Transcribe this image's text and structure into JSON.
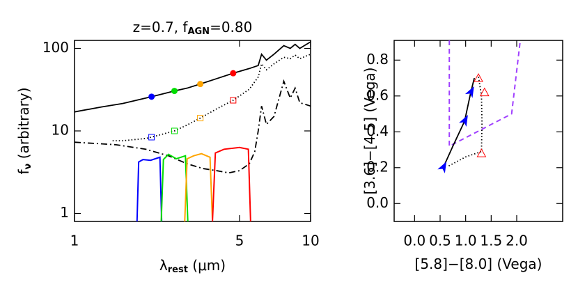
{
  "chart_data": [
    {
      "type": "line",
      "xlog": true,
      "ylog": true,
      "title": [
        "z=0.7,  f",
        "AGN",
        "=0.80"
      ],
      "xlabel": [
        "λ",
        "rest",
        " (μm)"
      ],
      "ylabel": [
        "f",
        "ν",
        " (arbitrary)"
      ],
      "xlim": [
        1,
        10
      ],
      "ylim": [
        0.8,
        125
      ],
      "xticks": [
        1,
        5,
        10
      ],
      "yticks": [
        1,
        10,
        100
      ],
      "series": [
        {
          "line": "solid",
          "color": "#000000",
          "x": [
            1,
            1.3,
            1.6,
            2,
            2.12,
            2.65,
            3,
            3.41,
            4,
            4.7,
            5.5,
            6,
            6.2,
            6.5,
            7,
            7.7,
            8.2,
            8.6,
            9,
            9.5,
            10
          ],
          "values": [
            17,
            19.5,
            21.5,
            25,
            26,
            30.5,
            33,
            37,
            43,
            50,
            57,
            62,
            85,
            72,
            85,
            108,
            100,
            112,
            100,
            110,
            120
          ]
        },
        {
          "line": "dotted",
          "color": "#000000",
          "x": [
            1.45,
            1.6,
            2,
            2.12,
            2.65,
            3,
            3.41,
            4,
            4.7,
            5.5,
            6,
            6.2,
            6.5,
            7,
            7.7,
            8.2,
            8.6,
            9,
            9.5,
            10
          ],
          "values": [
            7.6,
            7.6,
            8.1,
            8.4,
            10,
            11.8,
            14.3,
            18.5,
            23.5,
            32,
            45,
            65,
            55,
            65,
            78,
            75,
            83,
            75,
            80,
            85
          ]
        },
        {
          "line": "dashdot",
          "color": "#000000",
          "x": [
            1,
            1.5,
            2,
            2.5,
            3,
            3.5,
            4,
            4.5,
            5,
            5.5,
            5.8,
            6,
            6.2,
            6.5,
            7,
            7.7,
            8.2,
            8.6,
            9,
            10
          ],
          "values": [
            7.3,
            6.8,
            6,
            5,
            4,
            3.5,
            3.3,
            3.1,
            3.3,
            4,
            5.6,
            10,
            20,
            12,
            15,
            40,
            25,
            33,
            22,
            20
          ]
        },
        {
          "line": "solid",
          "color": "#0000ff",
          "x": [
            1.84,
            1.87,
            1.95,
            2.1,
            2.3,
            2.34
          ],
          "values": [
            0.8,
            4.2,
            4.5,
            4.4,
            4.8,
            0.8
          ]
        },
        {
          "line": "solid",
          "color": "#00dd00",
          "x": [
            2.33,
            2.38,
            2.5,
            2.7,
            2.95,
            3.02
          ],
          "values": [
            0.8,
            4.5,
            5.2,
            4.6,
            5.0,
            0.8
          ]
        },
        {
          "line": "solid",
          "color": "#ffa500",
          "x": [
            2.93,
            3.0,
            3.2,
            3.45,
            3.75,
            3.84
          ],
          "values": [
            0.8,
            4.6,
            5.0,
            5.3,
            4.8,
            0.8
          ]
        },
        {
          "line": "solid",
          "color": "#ff0000",
          "x": [
            3.84,
            3.95,
            4.3,
            5.0,
            5.45,
            5.57
          ],
          "values": [
            0.8,
            5.4,
            6.0,
            6.3,
            6.0,
            0.8
          ]
        },
        {
          "line": "none",
          "marker": "circle",
          "colors": [
            "#0000ff",
            "#00dd00",
            "#ffa500",
            "#ff0000"
          ],
          "x": [
            2.12,
            2.65,
            3.41,
            4.7
          ],
          "values": [
            26,
            30.5,
            37,
            50
          ]
        },
        {
          "line": "none",
          "marker": "square",
          "colors": [
            "#0000ff",
            "#00dd00",
            "#ffa500",
            "#ff0000"
          ],
          "x": [
            2.12,
            2.65,
            3.41,
            4.7
          ],
          "values": [
            8.4,
            10,
            14.3,
            23.5
          ]
        }
      ]
    },
    {
      "type": "line",
      "xlog": false,
      "ylog": false,
      "xlabel": [
        "[5.8]−[8.0] (Vega)"
      ],
      "ylabel": [
        "[3.6]−[4.5] (Vega)"
      ],
      "xlim": [
        -0.4,
        2.9
      ],
      "ylim": [
        -0.1,
        0.91
      ],
      "xticks": [
        {
          "value": 0,
          "label": "0.0"
        },
        {
          "value": 0.5,
          "label": "0.5"
        },
        {
          "value": 1,
          "label": "1.0"
        },
        {
          "value": 1.5,
          "label": "1.5"
        },
        {
          "value": 2,
          "label": "2.0"
        }
      ],
      "yticks": [
        {
          "value": 0,
          "label": "0.0"
        },
        {
          "value": 0.2,
          "label": "0.2"
        },
        {
          "value": 0.4,
          "label": "0.4"
        },
        {
          "value": 0.6,
          "label": "0.6"
        },
        {
          "value": 0.8,
          "label": "0.8"
        }
      ],
      "series": [
        {
          "line": "dashed",
          "color": "#a040ff",
          "x": [
            0.68,
            0.68,
            1.9,
            2.07
          ],
          "values": [
            0.91,
            0.32,
            0.5,
            0.91
          ]
        },
        {
          "line": "solid",
          "color": "#000000",
          "x": [
            0.56,
            0.75,
            0.98,
            1.1,
            1.17
          ],
          "values": [
            0.2,
            0.32,
            0.46,
            0.62,
            0.7
          ]
        },
        {
          "line": "dotted",
          "color": "#000000",
          "x": [
            0.67,
            1.0,
            1.31,
            1.32,
            1.31,
            1.25
          ],
          "values": [
            0.21,
            0.26,
            0.29,
            0.45,
            0.6,
            0.71
          ]
        },
        {
          "line": "none",
          "marker": "arrow",
          "color": "#0000ff",
          "x": [
            0.56,
            0.98,
            1.1
          ],
          "values": [
            0.2,
            0.46,
            0.62
          ]
        },
        {
          "line": "none",
          "marker": "triangle",
          "color": "#ff0000",
          "x": [
            1.31,
            1.37,
            1.25
          ],
          "values": [
            0.28,
            0.62,
            0.7
          ]
        }
      ]
    }
  ]
}
